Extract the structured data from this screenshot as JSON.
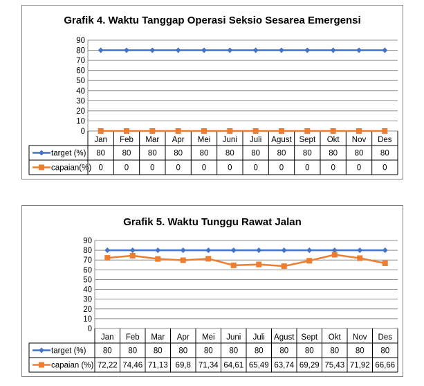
{
  "chart_data": [
    {
      "type": "line",
      "title": "Grafik 4. Waktu Tanggap Operasi Seksio Sesarea Emergensi",
      "categories": [
        "Jan",
        "Feb",
        "Mar",
        "Apr",
        "Mei",
        "Juni",
        "Juli",
        "Agust",
        "Sept",
        "Okt",
        "Nov",
        "Des"
      ],
      "ylim": [
        0,
        90
      ],
      "yticks": [
        "0",
        "10",
        "20",
        "30",
        "40",
        "50",
        "60",
        "70",
        "80",
        "90"
      ],
      "grid": true,
      "legend": "data-table-left",
      "series": [
        {
          "name": "target (%)",
          "color": "#4472C4",
          "marker": "diamond",
          "values": [
            80,
            80,
            80,
            80,
            80,
            80,
            80,
            80,
            80,
            80,
            80,
            80
          ],
          "labels": [
            "80",
            "80",
            "80",
            "80",
            "80",
            "80",
            "80",
            "80",
            "80",
            "80",
            "80",
            "80"
          ]
        },
        {
          "name": "capaian(%)",
          "color": "#ED7D31",
          "marker": "square",
          "values": [
            0,
            0,
            0,
            0,
            0,
            0,
            0,
            0,
            0,
            0,
            0,
            0
          ],
          "labels": [
            "0",
            "0",
            "0",
            "0",
            "0",
            "0",
            "0",
            "0",
            "0",
            "0",
            "0",
            "0"
          ]
        }
      ]
    },
    {
      "type": "line",
      "title": "Grafik 5. Waktu Tunggu Rawat Jalan",
      "categories": [
        "Jan",
        "Feb",
        "Mar",
        "Apr",
        "Mei",
        "Juni",
        "Juli",
        "Agust",
        "Sept",
        "Okt",
        "Nov",
        "Des"
      ],
      "ylim": [
        0,
        90
      ],
      "yticks": [
        "0",
        "10",
        "20",
        "30",
        "40",
        "50",
        "60",
        "70",
        "80",
        "90"
      ],
      "grid": true,
      "legend": "data-table-left",
      "series": [
        {
          "name": "target (%)",
          "color": "#4472C4",
          "marker": "diamond",
          "values": [
            80,
            80,
            80,
            80,
            80,
            80,
            80,
            80,
            80,
            80,
            80,
            80
          ],
          "labels": [
            "80",
            "80",
            "80",
            "80",
            "80",
            "80",
            "80",
            "80",
            "80",
            "80",
            "80",
            "80"
          ]
        },
        {
          "name": "capaian (%)",
          "color": "#ED7D31",
          "marker": "square",
          "values": [
            72.22,
            74.46,
            71.13,
            69.8,
            71.34,
            64.61,
            65.49,
            63.74,
            69.29,
            75.43,
            71.92,
            66.66
          ],
          "labels": [
            "72,22",
            "74,46",
            "71,13",
            "69,8",
            "71,34",
            "64,61",
            "65,49",
            "63,74",
            "69,29",
            "75,43",
            "71,92",
            "66,66"
          ]
        }
      ]
    }
  ]
}
